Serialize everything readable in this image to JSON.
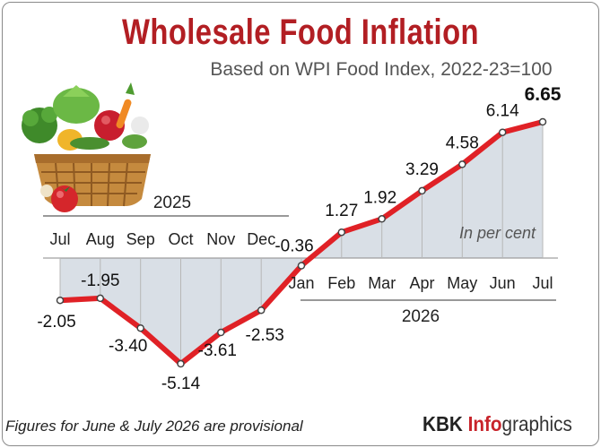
{
  "header": {
    "title": "Wholesale Food Inflation",
    "subtitle": "Based on WPI Food Index, 2022-23=100"
  },
  "chart_data": {
    "type": "line",
    "title": "Wholesale Food Inflation",
    "subtitle": "Based on WPI Food Index, 2022-23=100",
    "unit_note": "In per cent",
    "year_labels": [
      "2025",
      "2026"
    ],
    "categories": [
      "Jul",
      "Aug",
      "Sep",
      "Oct",
      "Nov",
      "Dec",
      "Jan",
      "Feb",
      "Mar",
      "Apr",
      "May",
      "Jun",
      "Jul"
    ],
    "series": [
      {
        "values": [
          -2.05,
          -1.95,
          -3.4,
          -5.14,
          -3.61,
          -2.53,
          -0.36,
          1.27,
          1.92,
          3.29,
          4.58,
          6.14,
          6.65
        ]
      }
    ],
    "data_labels": [
      "-2.05",
      "-1.95",
      "-3.40",
      "-5.14",
      "-3.61",
      "-2.53",
      "-0.36",
      "1.27",
      "1.92",
      "3.29",
      "4.58",
      "6.14",
      "6.65"
    ],
    "ylim": [
      -5.14,
      6.65
    ],
    "grid": false,
    "line_color": "#e02126",
    "area_color": "#d5dce3"
  },
  "footer": {
    "note": "Figures for June & July 2026 are provisional",
    "brand_kbk": "KBK",
    "brand_info": "Info",
    "brand_tail": "graphics"
  },
  "illustration": {
    "icon": "vegetable-basket-icon"
  }
}
